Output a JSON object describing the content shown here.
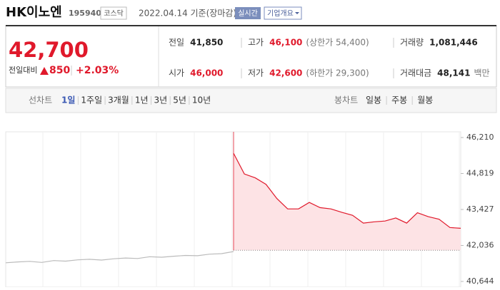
{
  "header": {
    "name": "HK이노엔",
    "code": "195940",
    "market": "코스닥",
    "date": "2022.04.14 기준(장마감)",
    "realtime": "실시간",
    "company": "기업개요"
  },
  "quote": {
    "price": "42,700",
    "change_label": "전일대비",
    "change": "850",
    "rate": "+2.03%"
  },
  "stats": [
    {
      "label": "전일",
      "value": "41,850"
    },
    {
      "label": "고가",
      "value": "46,100",
      "note": "(상한가 54,400)"
    },
    {
      "label": "거래량",
      "value": "1,081,446"
    },
    {
      "label": "시가",
      "value": "46,000"
    },
    {
      "label": "저가",
      "value": "42,600",
      "note": "(하한가 29,300)"
    },
    {
      "label": "거래대금",
      "value": "48,141",
      "note": "백만"
    }
  ],
  "tabs": {
    "line_label": "선차트",
    "line": [
      "1일",
      "1주일",
      "3개월",
      "1년",
      "3년",
      "5년",
      "10년"
    ],
    "candle_label": "봉차트",
    "candle": [
      "일봉",
      "주봉",
      "월봉"
    ]
  },
  "chart_data": {
    "type": "line",
    "ylim": [
      40644,
      46210
    ],
    "yticks": [
      {
        "value": 46210,
        "label": "46,210"
      },
      {
        "value": 44819,
        "label": "44,819"
      },
      {
        "value": 43427,
        "label": "43,427"
      },
      {
        "value": 42036,
        "label": "42,036"
      },
      {
        "value": 40644,
        "label": "40,644"
      }
    ],
    "baseline": 41850,
    "series": [
      {
        "color": "#bbbbbb",
        "values": [
          41366,
          41400,
          41420,
          41380,
          41450,
          41430,
          41480,
          41500,
          41470,
          41520,
          41550,
          41530,
          41600,
          41580,
          41620,
          41650,
          41640,
          41700,
          41720,
          41800
        ]
      },
      {
        "color": "#e0192b",
        "values": [
          45600,
          44800,
          44650,
          44400,
          43850,
          43450,
          43450,
          43700,
          43500,
          43450,
          43320,
          43200,
          42900,
          42950,
          42980,
          43100,
          42900,
          43300,
          43150,
          43050,
          42730,
          42700
        ]
      }
    ]
  }
}
